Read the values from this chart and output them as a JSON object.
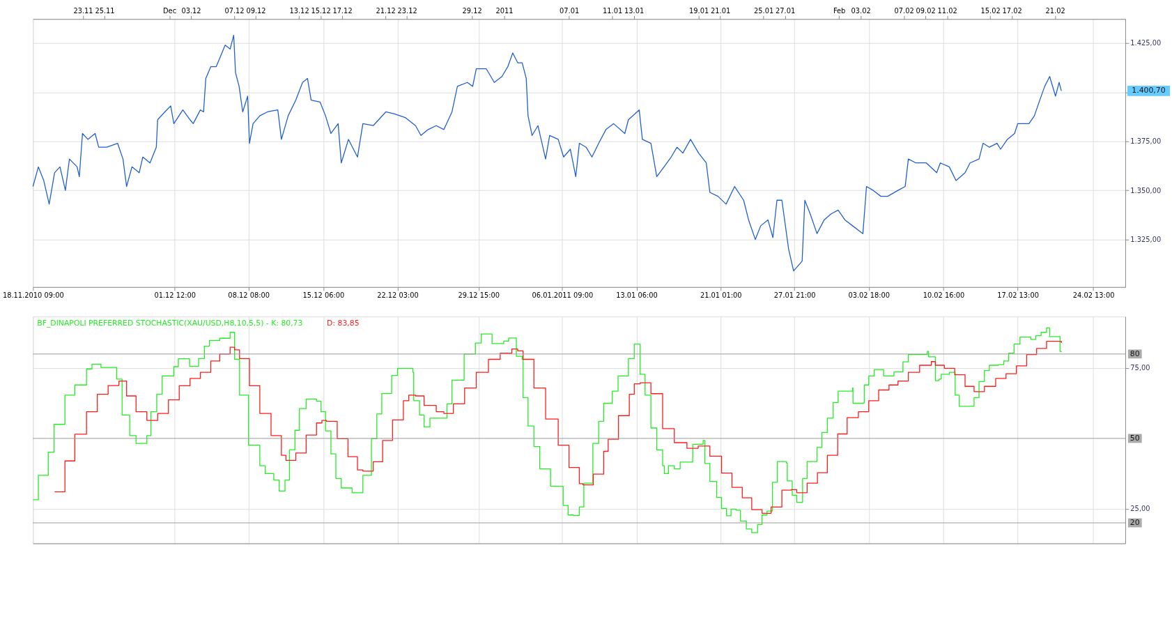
{
  "chart_data": [
    {
      "type": "line",
      "xlim": [
        "2010-11-18T09:00",
        "2011-02-27T12:00"
      ],
      "ylim": [
        1300.8,
        1437.3
      ],
      "xticks": [
        {
          "value": "2010-11-18T09:00",
          "label": "18.11.2010 09:00"
        },
        {
          "value": "2010-12-01T12:00",
          "label": "01.12 12:00"
        },
        {
          "value": "2010-12-08T08:00",
          "label": "08.12 08:00"
        },
        {
          "value": "2010-12-15T06:00",
          "label": "15.12 06:00"
        },
        {
          "value": "2010-12-22T03:00",
          "label": "22.12 03:00"
        },
        {
          "value": "2010-12-29T15:00",
          "label": "29.12 15:00"
        },
        {
          "value": "2011-01-06T09:00",
          "label": "06.01.2011 09:00"
        },
        {
          "value": "2011-01-13T06:00",
          "label": "13.01 06:00"
        },
        {
          "value": "2011-01-21T01:00",
          "label": "21.01 01:00"
        },
        {
          "value": "2011-01-27T21:00",
          "label": "27.01 21:00"
        },
        {
          "value": "2011-02-03T18:00",
          "label": "03.02 18:00"
        },
        {
          "value": "2011-02-10T16:00",
          "label": "10.02 16:00"
        },
        {
          "value": "2011-02-17T13:00",
          "label": "17.02 13:00"
        },
        {
          "value": "2011-02-24T13:00",
          "label": "24.02 13:00"
        }
      ],
      "x2lim": [
        "2010-11-18T09:00",
        "2011-02-27T12:00"
      ],
      "x2ticks": [
        {
          "value": "2010-11-23",
          "label": "23.11"
        },
        {
          "value": "2010-11-25",
          "label": "25.11"
        },
        {
          "value": "2010-12-01",
          "label": "Dec"
        },
        {
          "value": "2010-12-03",
          "label": "03.12"
        },
        {
          "value": "2010-12-07",
          "label": "07.12"
        },
        {
          "value": "2010-12-09",
          "label": "09.12"
        },
        {
          "value": "2010-12-13",
          "label": "13.12"
        },
        {
          "value": "2010-12-15",
          "label": "15.12"
        },
        {
          "value": "2010-12-17",
          "label": "17.12"
        },
        {
          "value": "2010-12-21",
          "label": "21.12"
        },
        {
          "value": "2010-12-23",
          "label": "23.12"
        },
        {
          "value": "2010-12-29",
          "label": "29.12"
        },
        {
          "value": "2011-01-01",
          "label": "2011"
        },
        {
          "value": "2011-01-07",
          "label": "07.01"
        },
        {
          "value": "2011-01-11",
          "label": "11.01"
        },
        {
          "value": "2011-01-13",
          "label": "13.01"
        },
        {
          "value": "2011-01-19",
          "label": "19.01"
        },
        {
          "value": "2011-01-21",
          "label": "21.01"
        },
        {
          "value": "2011-01-25",
          "label": "25.01"
        },
        {
          "value": "2011-01-27",
          "label": "27.01"
        },
        {
          "value": "2011-02-01",
          "label": "Feb"
        },
        {
          "value": "2011-02-03",
          "label": "03.02"
        },
        {
          "value": "2011-02-07",
          "label": "07.02"
        },
        {
          "value": "2011-02-09",
          "label": "09.02"
        },
        {
          "value": "2011-02-11",
          "label": "11.02"
        },
        {
          "value": "2011-02-15",
          "label": "15.02"
        },
        {
          "value": "2011-02-17",
          "label": "17.02"
        },
        {
          "value": "2011-02-21",
          "label": "21.02"
        }
      ],
      "yticks": [
        {
          "value": 1325,
          "label": "1.325,00"
        },
        {
          "value": 1350,
          "label": "1.350,00"
        },
        {
          "value": 1375,
          "label": "1.375,00"
        },
        {
          "value": 1400,
          "label": null
        },
        {
          "value": 1425,
          "label": "1.425,00"
        }
      ],
      "grid": true,
      "annotations": [
        "1.400,70"
      ],
      "x": [
        "2010-11-18T09:00",
        "2010-11-18T21:00",
        "2010-11-19T09:00",
        "2010-11-19T21:00",
        "2010-11-20T09:00",
        "2010-11-20T21:00",
        "2010-11-21T09:00",
        "2010-11-21T18:00",
        "2010-11-22T11:00",
        "2010-11-22T16:00",
        "2010-11-22T23:00",
        "2010-11-23T11:00",
        "2010-11-24T03:00",
        "2010-11-24T11:00",
        "2010-11-25T05:00",
        "2010-11-26T05:00",
        "2010-11-26T17:00",
        "2010-11-27T01:00",
        "2010-11-27T13:00",
        "2010-11-28T05:00",
        "2010-11-28T13:00",
        "2010-11-29T05:00",
        "2010-11-29T19:00",
        "2010-11-29T22:00",
        "2010-11-30T14:00",
        "2010-12-01T03:00",
        "2010-12-01T10:00",
        "2010-12-02T06:00",
        "2010-12-02T22:00",
        "2010-12-03T05:00",
        "2010-12-03T21:00",
        "2010-12-04T04:00",
        "2010-12-04T09:00",
        "2010-12-04T20:00",
        "2010-12-05T08:00",
        "2010-12-05T19:00",
        "2010-12-06T04:00",
        "2010-12-06T15:00",
        "2010-12-06T23:00",
        "2010-12-07T03:00",
        "2010-12-07T11:00",
        "2010-12-07T19:00",
        "2010-12-08T06:00",
        "2010-12-08T10:00",
        "2010-12-08T18:00",
        "2010-12-09T09:00",
        "2010-12-10T02:00",
        "2010-12-11T01:00",
        "2010-12-11T09:00",
        "2010-12-12T00:00",
        "2010-12-12T17:00",
        "2010-12-13T08:00",
        "2010-12-13T19:00",
        "2010-12-14T03:00",
        "2010-12-14T23:00",
        "2010-12-15T11:00",
        "2010-12-15T23:00",
        "2010-12-16T15:00",
        "2010-12-16T22:00",
        "2010-12-17T14:00",
        "2010-12-18T10:00",
        "2010-12-18T22:00",
        "2010-12-19T21:00",
        "2010-12-21T01:00",
        "2010-12-21T20:00",
        "2010-12-22T21:00",
        "2010-12-23T19:00",
        "2010-12-24T07:00",
        "2010-12-24T23:00",
        "2010-12-25T17:00",
        "2010-12-26T10:00",
        "2010-12-27T04:00",
        "2010-12-27T16:00",
        "2010-12-28T14:00",
        "2010-12-29T02:00",
        "2010-12-29T10:00",
        "2010-12-30T08:00",
        "2010-12-31T02:00",
        "2010-12-31T19:00",
        "2011-01-01T08:00",
        "2011-01-01T19:00",
        "2011-01-02T06:00",
        "2011-01-02T16:00",
        "2011-01-03T01:00",
        "2011-01-03T05:00",
        "2011-01-03T14:00",
        "2011-01-04T03:00",
        "2011-01-04T20:00",
        "2011-01-05T05:00",
        "2011-01-06T00:00",
        "2011-01-06T12:00",
        "2011-01-07T03:00",
        "2011-01-07T15:00",
        "2011-01-07T23:00",
        "2011-01-08T14:00",
        "2011-01-09T03:00",
        "2011-01-09T18:00",
        "2011-01-10T10:00",
        "2011-01-11T03:00",
        "2011-01-12T04:00",
        "2011-01-12T12:00",
        "2011-01-13T12:00",
        "2011-01-13T19:00",
        "2011-01-14T14:00",
        "2011-01-15T03:00",
        "2011-01-15T16:00",
        "2011-01-16T11:00",
        "2011-01-17T00:00",
        "2011-01-17T13:00",
        "2011-01-18T06:00",
        "2011-01-19T00:00",
        "2011-01-19T17:00",
        "2011-01-20T01:00",
        "2011-01-20T19:00",
        "2011-01-21T13:00",
        "2011-01-22T08:00",
        "2011-01-23T04:00",
        "2011-01-23T15:00",
        "2011-01-24T06:00",
        "2011-01-24T18:00",
        "2011-01-25T10:00",
        "2011-01-25T21:00",
        "2011-01-26T06:00",
        "2011-01-26T17:00",
        "2011-01-27T08:00",
        "2011-01-27T19:00",
        "2011-01-28T14:00",
        "2011-01-28T20:00",
        "2011-01-29T08:00",
        "2011-01-29T23:00",
        "2011-01-30T15:00",
        "2011-01-31T06:00",
        "2011-01-31T22:00",
        "2011-02-01T13:00",
        "2011-02-02T06:00",
        "2011-02-03T05:00",
        "2011-02-03T13:00",
        "2011-02-04T04:00",
        "2011-02-04T21:00",
        "2011-02-05T12:00",
        "2011-02-06T11:00",
        "2011-02-07T03:00",
        "2011-02-07T10:00",
        "2011-02-08T03:00",
        "2011-02-09T02:00",
        "2011-02-10T01:00",
        "2011-02-10T09:00",
        "2011-02-11T05:00",
        "2011-02-11T20:00",
        "2011-02-12T16:00",
        "2011-02-13T03:00",
        "2011-02-13T23:00",
        "2011-02-14T08:00",
        "2011-02-14T22:00",
        "2011-02-15T15:00",
        "2011-02-15T23:00",
        "2011-02-16T14:00",
        "2011-02-17T06:00",
        "2011-02-17T13:00",
        "2011-02-18T14:00",
        "2011-02-19T02:00",
        "2011-02-19T14:00",
        "2011-02-20T01:00",
        "2011-02-20T12:00",
        "2011-02-21T01:00",
        "2011-02-21T09:00",
        "2011-02-21T14:00"
      ],
      "series": [
        {
          "color": "#1f5fd0",
          "values": [
            1352,
            1362,
            1355,
            1343,
            1359,
            1362,
            1350,
            1366,
            1362,
            1357,
            1379,
            1376,
            1379,
            1372,
            1372,
            1374,
            1366,
            1352,
            1362,
            1359,
            1367,
            1364,
            1372,
            1386,
            1390,
            1393,
            1384,
            1391,
            1386,
            1384,
            1391,
            1390,
            1407,
            1413,
            1413,
            1419,
            1424,
            1422,
            1429,
            1410,
            1403,
            1390,
            1398,
            1374,
            1384,
            1388,
            1390,
            1391,
            1376,
            1388,
            1396,
            1405,
            1407,
            1396,
            1395,
            1388,
            1379,
            1384,
            1364,
            1376,
            1367,
            1384,
            1383,
            1390,
            1389,
            1387,
            1383,
            1378,
            1381,
            1383,
            1381,
            1390,
            1403,
            1405,
            1403,
            1412,
            1412,
            1405,
            1408,
            1413,
            1420,
            1415,
            1415,
            1407,
            1388,
            1378,
            1383,
            1366,
            1378,
            1376,
            1367,
            1371,
            1357,
            1374,
            1372,
            1367,
            1374,
            1381,
            1384,
            1379,
            1386,
            1391,
            1376,
            1374,
            1357,
            1361,
            1367,
            1372,
            1369,
            1376,
            1369,
            1364,
            1349,
            1347,
            1343,
            1352,
            1345,
            1335,
            1325,
            1332,
            1335,
            1326,
            1345,
            1345,
            1320,
            1309,
            1314,
            1345,
            1338,
            1328,
            1335,
            1338,
            1340,
            1335,
            1332,
            1328,
            1352,
            1350,
            1347,
            1347,
            1350,
            1352,
            1366,
            1364,
            1364,
            1359,
            1364,
            1362,
            1355,
            1359,
            1364,
            1366,
            1374,
            1372,
            1374,
            1371,
            1376,
            1379,
            1384,
            1384,
            1388,
            1396,
            1403,
            1408,
            1398,
            1405,
            1400.7
          ]
        }
      ]
    },
    {
      "type": "step",
      "xlim": [
        "2010-11-18T09:00",
        "2011-02-27T12:00"
      ],
      "ylim": [
        12.7,
        93.3
      ],
      "xticks": [
        "2010-11-18T09:00",
        "2010-12-01T12:00",
        "2010-12-08T08:00",
        "2010-12-15T06:00",
        "2010-12-22T03:00",
        "2010-12-29T15:00",
        "2011-01-06T09:00",
        "2011-01-13T06:00",
        "2011-01-21T01:00",
        "2011-01-27T21:00",
        "2011-02-03T18:00",
        "2011-02-10T16:00",
        "2011-02-17T13:00",
        "2011-02-24T13:00"
      ],
      "yticks": [
        {
          "value": 25,
          "label": "25,00"
        },
        {
          "value": 75,
          "label": "75,00"
        }
      ],
      "tick_labels": "y",
      "grid": true,
      "ref_lines": [
        {
          "axis": "y",
          "value": 80,
          "label": "80",
          "color": "#999999"
        },
        {
          "axis": "y",
          "value": 50,
          "label": "50",
          "color": "#999999"
        },
        {
          "axis": "y",
          "value": 20,
          "label": "20",
          "color": "#999999"
        }
      ],
      "series": [
        {
          "name": "BF_DINAPOLI PREFERRED STOCHASTIC(XAU/USD,H8,10,5,5) -  K: 80,73",
          "color": "#22ee22",
          "x": [
            "2010-11-18T09:00",
            "2010-11-18T21:00",
            "2010-11-19T19:00",
            "2010-11-20T08:00",
            "2010-11-21T08:00",
            "2010-11-22T06:00",
            "2010-11-23T08:00",
            "2010-11-23T20:00",
            "2010-11-24T16:00",
            "2010-11-26T03:00",
            "2010-11-26T15:00",
            "2010-11-27T08:00",
            "2010-11-27T22:00",
            "2010-11-28T22:00",
            "2010-11-29T07:00",
            "2010-11-29T20:00",
            "2010-11-30T08:00",
            "2010-12-01T10:00",
            "2010-12-01T20:00",
            "2010-12-02T21:00",
            "2010-12-03T17:00",
            "2010-12-04T06:00",
            "2010-12-04T17:00",
            "2010-12-05T16:00",
            "2010-12-06T15:00",
            "2010-12-07T01:00",
            "2010-12-07T12:00",
            "2010-12-08T08:00",
            "2010-12-09T09:00",
            "2010-12-09T21:00",
            "2010-12-10T16:00",
            "2010-12-11T04:00",
            "2010-12-11T17:00",
            "2010-12-12T03:00",
            "2010-12-12T15:00",
            "2010-12-13T01:00",
            "2010-12-13T16:00",
            "2010-12-14T15:00",
            "2010-12-15T01:00",
            "2010-12-15T11:00",
            "2010-12-15T23:00",
            "2010-12-16T10:00",
            "2010-12-16T22:00",
            "2010-12-17T22:00",
            "2010-12-18T17:00",
            "2010-12-18T22:00",
            "2010-12-19T17:00",
            "2010-12-20T05:00",
            "2010-12-20T16:00",
            "2010-12-21T14:00",
            "2010-12-22T03:00",
            "2010-12-23T13:00",
            "2010-12-23T15:00",
            "2010-12-24T04:00",
            "2010-12-24T14:00",
            "2010-12-25T03:00",
            "2010-12-26T01:00",
            "2010-12-26T17:00",
            "2010-12-27T04:00",
            "2010-12-28T07:00",
            "2010-12-29T08:00",
            "2010-12-29T21:00",
            "2010-12-30T21:00",
            "2010-12-31T23:00",
            "2011-01-01T10:00",
            "2011-01-02T03:00",
            "2011-01-02T16:00",
            "2011-01-02T18:00",
            "2011-01-03T05:00",
            "2011-01-03T18:00",
            "2011-01-04T07:00",
            "2011-01-05T07:00",
            "2011-01-06T11:00",
            "2011-01-06T22:00",
            "2011-01-07T10:00",
            "2011-01-07T23:00",
            "2011-01-08T09:00",
            "2011-01-09T05:00",
            "2011-01-09T18:00",
            "2011-01-10T05:00",
            "2011-01-11T00:00",
            "2011-01-11T13:00",
            "2011-01-12T12:00",
            "2011-01-13T01:00",
            "2011-01-13T12:00",
            "2011-01-13T14:00",
            "2011-01-14T01:00",
            "2011-01-14T14:00",
            "2011-01-15T03:00",
            "2011-01-15T16:00",
            "2011-01-15T20:00",
            "2011-01-16T05:00",
            "2011-01-16T18:00",
            "2011-01-17T07:00",
            "2011-01-18T11:00",
            "2011-01-19T10:00",
            "2011-01-19T14:00",
            "2011-01-20T01:00",
            "2011-01-20T16:00",
            "2011-01-21T03:00",
            "2011-01-21T14:00",
            "2011-01-22T00:00",
            "2011-01-22T11:00",
            "2011-01-22T21:00",
            "2011-01-23T10:00",
            "2011-01-23T22:00",
            "2011-01-24T11:00",
            "2011-01-24T21:00",
            "2011-01-25T08:00",
            "2011-01-25T20:00",
            "2011-01-26T07:00",
            "2011-01-27T03:00",
            "2011-01-27T05:00",
            "2011-01-27T16:00",
            "2011-01-28T02:00",
            "2011-01-28T15:00",
            "2011-01-29T01:00",
            "2011-01-29T23:00",
            "2011-01-30T10:00",
            "2011-01-30T22:00",
            "2011-01-31T11:00",
            "2011-01-31T22:00",
            "2011-02-02T06:00",
            "2011-02-02T07:00",
            "2011-02-03T05:00",
            "2011-02-03T08:00",
            "2011-02-03T18:00",
            "2011-02-04T06:00",
            "2011-02-05T03:00",
            "2011-02-06T02:00",
            "2011-02-06T22:00",
            "2011-02-07T10:00",
            "2011-02-09T04:00",
            "2011-02-09T07:00",
            "2011-02-09T22:00",
            "2011-02-10T06:00",
            "2011-02-10T11:00",
            "2011-02-11T05:00",
            "2011-02-11T18:00",
            "2011-02-12T03:00",
            "2011-02-13T12:00",
            "2011-02-13T23:00",
            "2011-02-14T11:00",
            "2011-02-14T22:00",
            "2011-02-15T18:00",
            "2011-02-16T06:00",
            "2011-02-16T17:00",
            "2011-02-17T05:00",
            "2011-02-17T18:00",
            "2011-02-18T18:00",
            "2011-02-19T05:00",
            "2011-02-19T17:00",
            "2011-02-20T05:00",
            "2011-02-20T12:00",
            "2011-02-21T11:00",
            "2011-02-21T14:00"
          ],
          "values": [
            28.2,
            36.9,
            45.1,
            55.0,
            65.4,
            69.0,
            74.7,
            76.4,
            75.2,
            71.1,
            58.3,
            51.0,
            48.2,
            51.0,
            59.5,
            65.7,
            72.2,
            75.5,
            78.3,
            75.6,
            78.4,
            82.8,
            84.8,
            85.6,
            87.7,
            78.1,
            65.4,
            47.6,
            40.3,
            37.5,
            35.2,
            31.3,
            35.2,
            46.0,
            52.9,
            60.6,
            64.0,
            63.2,
            59.5,
            52.7,
            44.5,
            35.8,
            32.4,
            30.7,
            30.7,
            36.9,
            49.9,
            58.7,
            66.0,
            72.4,
            74.9,
            73.5,
            63.4,
            58.3,
            54.1,
            57.2,
            57.2,
            62.3,
            70.7,
            80.0,
            83.9,
            87.1,
            83.7,
            84.6,
            85.7,
            79.2,
            78.1,
            64.5,
            54.4,
            47.1,
            39.2,
            33.0,
            26.2,
            22.8,
            22.6,
            25.6,
            34.1,
            48.2,
            56.1,
            62.5,
            66.8,
            72.2,
            78.4,
            83.5,
            83.5,
            72.8,
            65.4,
            53.7,
            45.9,
            40.3,
            37.5,
            40.3,
            39.2,
            41.6,
            47.9,
            49.3,
            41.1,
            34.7,
            29.0,
            25.1,
            22.5,
            24.9,
            24.5,
            20.6,
            17.8,
            16.5,
            19.4,
            22.8,
            24.2,
            34.4,
            41.8,
            41.3,
            34.9,
            29.8,
            27.3,
            35.8,
            41.8,
            46.8,
            52.1,
            57.2,
            62.8,
            66.8,
            67.9,
            62.5,
            62.6,
            69.0,
            72.2,
            74.5,
            72.2,
            73.6,
            77.2,
            79.8,
            80.9,
            79.0,
            70.5,
            71.1,
            72.8,
            73.5,
            65.4,
            61.4,
            64.5,
            70.2,
            74.1,
            76.0,
            76.2,
            77.5,
            80.3,
            83.5,
            86.0,
            85.2,
            86.5,
            87.7,
            89.3,
            86.2,
            80.9,
            80.7
          ]
        },
        {
          "name": "D: 83,85",
          "color": "#ff1a1a",
          "x": [
            "2010-11-20T09:00",
            "2010-11-21T08:00",
            "2010-11-22T06:00",
            "2010-11-23T08:00",
            "2010-11-24T08:00",
            "2010-11-25T08:00",
            "2010-11-26T08:00",
            "2010-11-27T01:00",
            "2010-11-27T22:00",
            "2010-11-28T22:00",
            "2010-11-29T22:00",
            "2010-11-30T22:00",
            "2010-12-01T22:00",
            "2010-12-02T22:00",
            "2010-12-03T21:00",
            "2010-12-04T20:00",
            "2010-12-05T16:00",
            "2010-12-06T15:00",
            "2010-12-07T01:00",
            "2010-12-07T12:00",
            "2010-12-08T10:00",
            "2010-12-09T09:00",
            "2010-12-10T10:00",
            "2010-12-11T09:00",
            "2010-12-11T19:00",
            "2010-12-12T17:00",
            "2010-12-13T16:00",
            "2010-12-14T15:00",
            "2010-12-15T03:00",
            "2010-12-15T13:00",
            "2010-12-16T13:00",
            "2010-12-17T13:00",
            "2010-12-18T10:00",
            "2010-12-18T22:00",
            "2010-12-19T21:00",
            "2010-12-20T18:00",
            "2010-12-21T16:00",
            "2010-12-22T16:00",
            "2010-12-23T04:00",
            "2010-12-23T19:00",
            "2010-12-24T14:00",
            "2010-12-25T17:00",
            "2010-12-26T10:00",
            "2010-12-27T07:00",
            "2010-12-28T08:00",
            "2010-12-29T10:00",
            "2010-12-30T13:00",
            "2010-12-31T15:00",
            "2011-01-01T17:00",
            "2011-01-02T06:00",
            "2011-01-02T18:00",
            "2011-01-03T18:00",
            "2011-01-04T20:00",
            "2011-01-06T00:00",
            "2011-01-07T00:00",
            "2011-01-07T23:00",
            "2011-01-08T07:00",
            "2011-01-09T06:00",
            "2011-01-10T05:00",
            "2011-01-10T15:00",
            "2011-01-11T14:00",
            "2011-01-12T14:00",
            "2011-01-13T01:00",
            "2011-01-13T14:00",
            "2011-01-14T14:00",
            "2011-01-15T16:00",
            "2011-01-16T18:00",
            "2011-01-17T22:00",
            "2011-01-18T23:00",
            "2011-01-20T01:00",
            "2011-01-21T03:00",
            "2011-01-22T02:00",
            "2011-01-23T01:00",
            "2011-01-23T22:00",
            "2011-01-24T21:00",
            "2011-01-25T17:00",
            "2011-01-26T17:00",
            "2011-01-27T14:00",
            "2011-01-28T02:00",
            "2011-01-29T01:00",
            "2011-01-30T00:00",
            "2011-01-30T22:00",
            "2011-01-31T21:00",
            "2011-02-01T18:00",
            "2011-02-02T19:00",
            "2011-02-03T18:00",
            "2011-02-04T16:00",
            "2011-02-05T15:00",
            "2011-02-06T11:00",
            "2011-02-07T10:00",
            "2011-02-08T11:00",
            "2011-02-09T13:00",
            "2011-02-09T22:00",
            "2011-02-10T18:00",
            "2011-02-11T17:00",
            "2011-02-12T16:00",
            "2011-02-13T12:00",
            "2011-02-14T11:00",
            "2011-02-15T12:00",
            "2011-02-16T11:00",
            "2011-02-17T10:00",
            "2011-02-18T09:00",
            "2011-02-19T07:00",
            "2011-02-20T05:00",
            "2011-02-21T04:00",
            "2011-02-21T14:00"
          ],
          "values": [
            31.0,
            42.0,
            51.5,
            59.5,
            65.7,
            68.8,
            70.4,
            65.1,
            59.5,
            56.4,
            58.9,
            63.7,
            68.7,
            71.3,
            73.5,
            77.5,
            80.0,
            82.4,
            81.5,
            78.4,
            68.7,
            58.9,
            51.0,
            44.0,
            42.2,
            44.8,
            51.2,
            55.5,
            56.4,
            56.1,
            49.9,
            43.5,
            38.8,
            38.4,
            41.7,
            49.3,
            56.6,
            63.4,
            65.4,
            65.1,
            61.7,
            59.5,
            58.9,
            62.3,
            67.9,
            73.5,
            78.1,
            80.3,
            81.8,
            81.1,
            78.1,
            67.9,
            56.9,
            47.6,
            39.7,
            33.9,
            33.5,
            37.3,
            45.4,
            49.7,
            58.1,
            65.7,
            69.4,
            69.8,
            65.9,
            53.5,
            48.5,
            46.5,
            47.3,
            43.7,
            37.7,
            32.6,
            28.9,
            24.7,
            23.4,
            25.6,
            31.6,
            31.8,
            30.7,
            34.1,
            37.8,
            44.0,
            51.6,
            57.4,
            59.5,
            63.4,
            67.2,
            69.0,
            70.4,
            73.5,
            76.0,
            77.3,
            76.0,
            74.9,
            72.6,
            68.5,
            66.6,
            68.5,
            71.3,
            73.0,
            75.8,
            79.8,
            82.0,
            84.5,
            84.5,
            83.9
          ]
        }
      ]
    }
  ]
}
